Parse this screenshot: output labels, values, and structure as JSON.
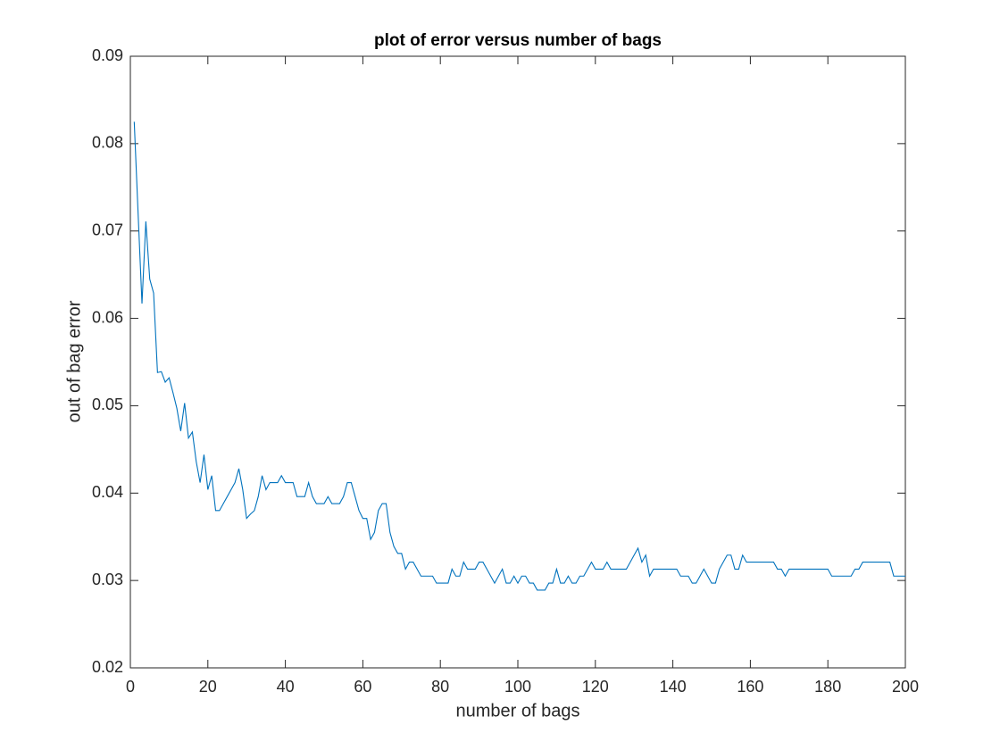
{
  "chart_data": {
    "type": "line",
    "title": "plot of error versus number of bags",
    "xlabel": "number of bags",
    "ylabel": "out of bag error",
    "color": "#0072BD",
    "x": [
      1,
      2,
      3,
      4,
      5,
      6,
      7,
      8,
      9,
      10,
      11,
      12,
      13,
      14,
      15,
      16,
      17,
      18,
      19,
      20,
      21,
      22,
      23,
      24,
      25,
      26,
      27,
      28,
      29,
      30,
      31,
      32,
      33,
      34,
      35,
      36,
      37,
      38,
      39,
      40,
      41,
      42,
      43,
      44,
      45,
      46,
      47,
      48,
      49,
      50,
      51,
      52,
      53,
      54,
      55,
      56,
      57,
      58,
      59,
      60,
      61,
      62,
      63,
      64,
      65,
      66,
      67,
      68,
      69,
      70,
      71,
      72,
      73,
      74,
      75,
      76,
      77,
      78,
      79,
      80,
      81,
      82,
      83,
      84,
      85,
      86,
      87,
      88,
      89,
      90,
      91,
      92,
      93,
      94,
      95,
      96,
      97,
      98,
      99,
      100,
      101,
      102,
      103,
      104,
      105,
      106,
      107,
      108,
      109,
      110,
      111,
      112,
      113,
      114,
      115,
      116,
      117,
      118,
      119,
      120,
      121,
      122,
      123,
      124,
      125,
      126,
      127,
      128,
      129,
      130,
      131,
      132,
      133,
      134,
      135,
      136,
      137,
      138,
      139,
      140,
      141,
      142,
      143,
      144,
      145,
      146,
      147,
      148,
      149,
      150,
      151,
      152,
      153,
      154,
      155,
      156,
      157,
      158,
      159,
      160,
      161,
      162,
      163,
      164,
      165,
      166,
      167,
      168,
      169,
      170,
      171,
      172,
      173,
      174,
      175,
      176,
      177,
      178,
      179,
      180,
      181,
      182,
      183,
      184,
      185,
      186,
      187,
      188,
      189,
      190,
      191,
      192,
      193,
      194,
      195,
      196,
      197,
      198,
      199,
      200
    ],
    "values": [
      0.0825,
      0.072,
      0.0617,
      0.0711,
      0.0645,
      0.0629,
      0.0538,
      0.0539,
      0.0527,
      0.0532,
      0.0515,
      0.0497,
      0.0471,
      0.0503,
      0.0463,
      0.047,
      0.0436,
      0.0412,
      0.0444,
      0.0404,
      0.042,
      0.038,
      0.038,
      0.0388,
      0.0396,
      0.0404,
      0.0412,
      0.0428,
      0.0404,
      0.0371,
      0.0376,
      0.038,
      0.0396,
      0.042,
      0.0404,
      0.0412,
      0.0412,
      0.0412,
      0.042,
      0.0412,
      0.0412,
      0.0412,
      0.0396,
      0.0396,
      0.0396,
      0.0412,
      0.0396,
      0.0388,
      0.0388,
      0.0388,
      0.0396,
      0.0388,
      0.0388,
      0.0388,
      0.0396,
      0.0412,
      0.0412,
      0.0396,
      0.038,
      0.0371,
      0.0371,
      0.0347,
      0.0355,
      0.038,
      0.0388,
      0.0388,
      0.0355,
      0.0339,
      0.0331,
      0.0331,
      0.0313,
      0.0321,
      0.0321,
      0.0313,
      0.0305,
      0.0305,
      0.0305,
      0.0305,
      0.0297,
      0.0297,
      0.0297,
      0.0297,
      0.0313,
      0.0305,
      0.0305,
      0.0321,
      0.0313,
      0.0313,
      0.0313,
      0.0321,
      0.0321,
      0.0313,
      0.0305,
      0.0297,
      0.0305,
      0.0313,
      0.0297,
      0.0297,
      0.0305,
      0.0297,
      0.0305,
      0.0305,
      0.0297,
      0.0297,
      0.0289,
      0.0289,
      0.0289,
      0.0297,
      0.0297,
      0.0313,
      0.0297,
      0.0297,
      0.0305,
      0.0297,
      0.0297,
      0.0305,
      0.0305,
      0.0313,
      0.0321,
      0.0313,
      0.0313,
      0.0313,
      0.0321,
      0.0313,
      0.0313,
      0.0313,
      0.0313,
      0.0313,
      0.0321,
      0.0329,
      0.0337,
      0.0321,
      0.0329,
      0.0305,
      0.0313,
      0.0313,
      0.0313,
      0.0313,
      0.0313,
      0.0313,
      0.0313,
      0.0305,
      0.0305,
      0.0305,
      0.0297,
      0.0297,
      0.0305,
      0.0313,
      0.0305,
      0.0297,
      0.0297,
      0.0313,
      0.0321,
      0.0329,
      0.0329,
      0.0313,
      0.0313,
      0.0329,
      0.0321,
      0.0321,
      0.0321,
      0.0321,
      0.0321,
      0.0321,
      0.0321,
      0.0321,
      0.0313,
      0.0313,
      0.0305,
      0.0313,
      0.0313,
      0.0313,
      0.0313,
      0.0313,
      0.0313,
      0.0313,
      0.0313,
      0.0313,
      0.0313,
      0.0313,
      0.0305,
      0.0305,
      0.0305,
      0.0305,
      0.0305,
      0.0305,
      0.0313,
      0.0313,
      0.0321,
      0.0321,
      0.0321,
      0.0321,
      0.0321,
      0.0321,
      0.0321,
      0.0321,
      0.0305,
      0.0305,
      0.0305,
      0.0305
    ],
    "xlim": [
      0,
      200
    ],
    "xticks": [
      0,
      20,
      40,
      60,
      80,
      100,
      120,
      140,
      160,
      180,
      200
    ],
    "ylim": [
      0.02,
      0.09
    ],
    "yticks": [
      0.02,
      0.03,
      0.04,
      0.05,
      0.06,
      0.07,
      0.08,
      0.09
    ],
    "grid": false
  }
}
